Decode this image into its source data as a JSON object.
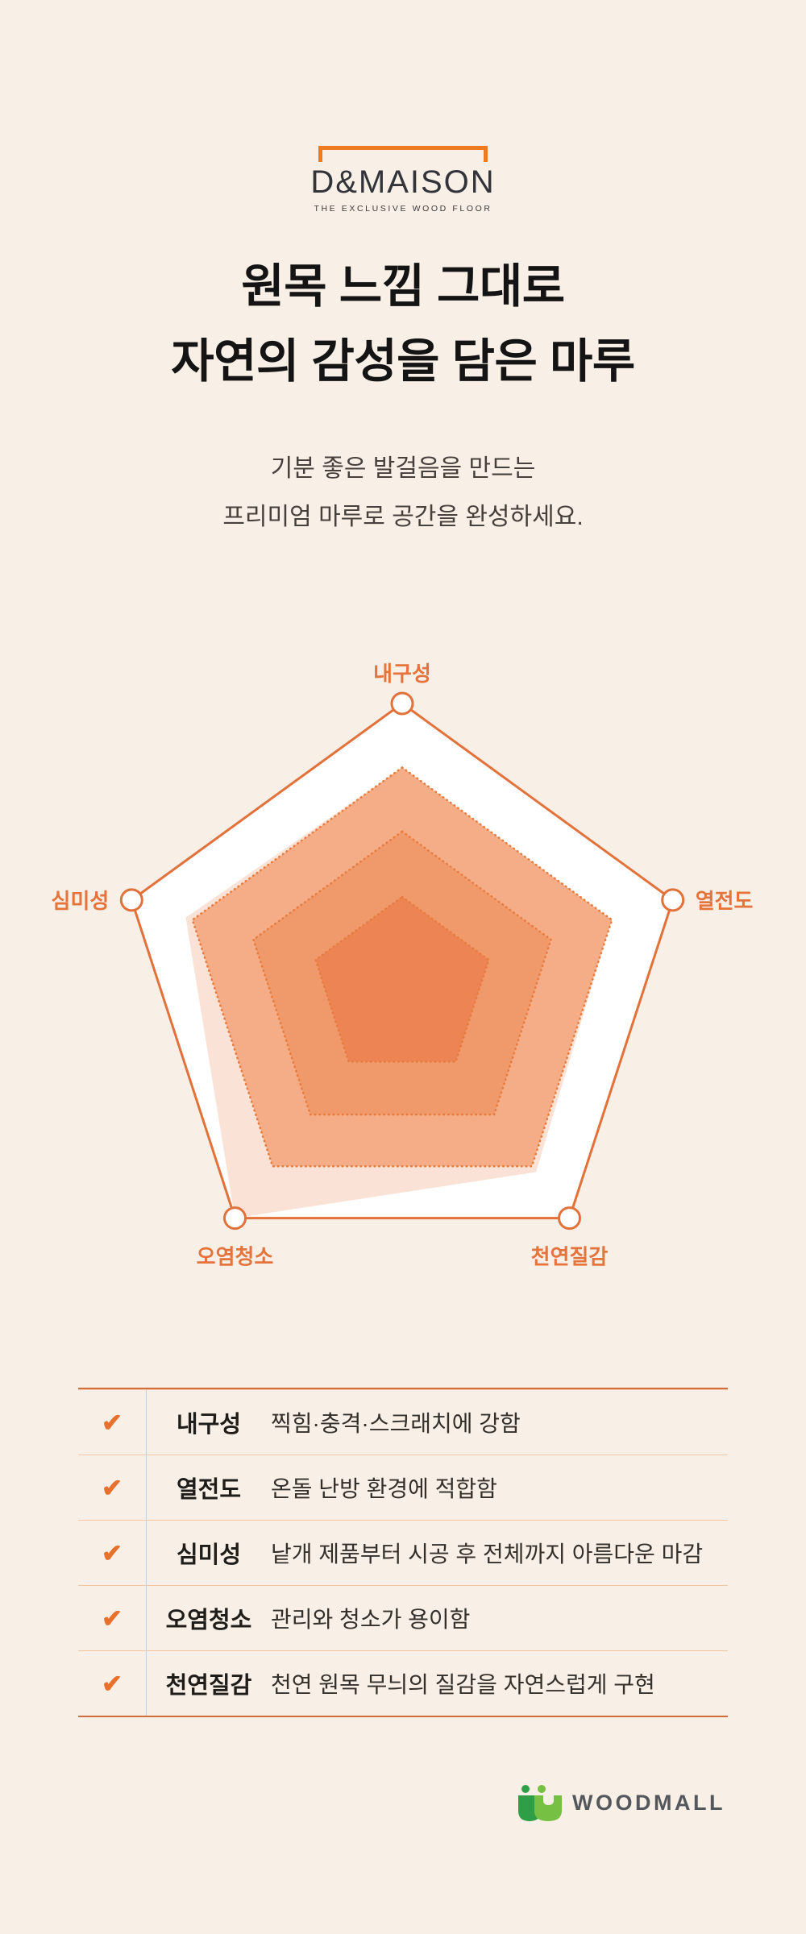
{
  "page": {
    "background": "#f8efe6"
  },
  "brand": {
    "name": "D&MAISON",
    "tagline": "THE EXCLUSIVE WOOD FLOOR",
    "bracket_color": "#ee7b20"
  },
  "hero": {
    "headline_line1": "원목 느낌 그대로",
    "headline_line2": "자연의 감성을 담은 마루",
    "subtitle_line1": "기분 좋은 발걸음을 만드는",
    "subtitle_line2": "프리미엄 마루로 공간을 완성하세요."
  },
  "chart_data": {
    "type": "radar",
    "categories": [
      "내구성",
      "열전도",
      "천연질감",
      "오염청소",
      "심미성"
    ],
    "values": [
      4,
      4,
      4,
      5,
      4
    ],
    "max": 5,
    "values_fraction": [
      0.775,
      0.775,
      0.8,
      1.0,
      0.8
    ],
    "rings_fraction": [
      0.775,
      0.55,
      0.32
    ],
    "legend": "none",
    "grid": "pentagon-rings",
    "colors": {
      "outline": "#e2713a",
      "outline_fill": "#ffffff",
      "axis_label": "#e5743c",
      "ring_fills": [
        "#f4ad86",
        "#f0996b",
        "#ec8454"
      ],
      "ring_dotted_stroke": "#e87c3e",
      "data_fill": "rgba(233,123,70,0.22)",
      "vertex_marker_fill": "#ffffff"
    }
  },
  "features": {
    "check_glyph": "✔",
    "rows": [
      {
        "label": "내구성",
        "desc": "찍힘·충격·스크래치에 강함"
      },
      {
        "label": "열전도",
        "desc": "온돌 난방 환경에 적합함"
      },
      {
        "label": "심미성",
        "desc": "낱개 제품부터 시공 후 전체까지 아름다운 마감"
      },
      {
        "label": "오염청소",
        "desc": "관리와 청소가 용이함"
      },
      {
        "label": "천연질감",
        "desc": "천연 원목 무늬의 질감을 자연스럽게 구현"
      }
    ]
  },
  "footer": {
    "brand": "WOODMALL"
  }
}
